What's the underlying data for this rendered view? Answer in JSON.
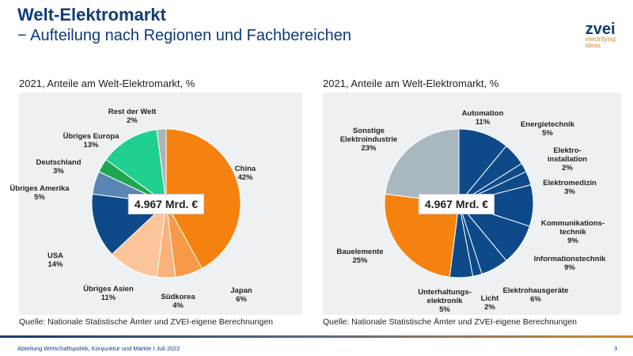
{
  "header": {
    "title": "Welt-Elektromarkt",
    "subtitle": "− Aufteilung nach Regionen und Fachbereichen"
  },
  "logo": {
    "name": "zvei",
    "tagline1": "electrifying",
    "tagline2": "ideas"
  },
  "footer": {
    "text": "Abteilung Wirtschaftspolitik, Konjunktur und Märkte I Juli 2022",
    "page": "3"
  },
  "chart_data": [
    {
      "type": "pie",
      "title": "2021, Anteile am Welt-Elektromarkt, %",
      "center_label": "4.967 Mrd. €",
      "source": "Quelle: Nationale Statistische Ämter und ZVEI-eigene Berechnungen",
      "slices": [
        {
          "label": "China",
          "value": 42,
          "color": "#f5820f"
        },
        {
          "label": "Japan",
          "value": 6,
          "color": "#f79a48"
        },
        {
          "label": "Südkorea",
          "value": 4,
          "color": "#f9b27a"
        },
        {
          "label": "Übriges Asien",
          "value": 11,
          "color": "#fbc49a"
        },
        {
          "label": "USA",
          "value": 14,
          "color": "#0e4a8a"
        },
        {
          "label": "Übriges Amerika",
          "value": 5,
          "color": "#5b86b3"
        },
        {
          "label": "Deutschland",
          "value": 3,
          "color": "#1fa650"
        },
        {
          "label": "Übriges Europa",
          "value": 13,
          "color": "#1fd08f"
        },
        {
          "label": "Rest der Welt",
          "value": 2,
          "color": "#a9b4bc"
        }
      ]
    },
    {
      "type": "pie",
      "title": "2021, Anteile am Welt-Elektromarkt, %",
      "center_label": "4.967 Mrd. €",
      "source": "Quelle: Nationale Statistische Ämter und ZVEI-eigene Berechnungen",
      "slices": [
        {
          "label": "Automation",
          "value": 11,
          "color": "#0e4a8a"
        },
        {
          "label": "Energietechnik",
          "value": 5,
          "color": "#0e4a8a"
        },
        {
          "label": "Elektro-\ninstallation",
          "value": 2,
          "color": "#0e4a8a"
        },
        {
          "label": "Elektromedizin",
          "value": 3,
          "color": "#0e4a8a"
        },
        {
          "label": "Kommunikations-\ntechnik",
          "value": 9,
          "color": "#0e4a8a"
        },
        {
          "label": "Informationstechnik",
          "value": 9,
          "color": "#0e4a8a"
        },
        {
          "label": "Elektrohausgeräte",
          "value": 6,
          "color": "#0e4a8a"
        },
        {
          "label": "Licht",
          "value": 2,
          "color": "#0e4a8a"
        },
        {
          "label": "Unterhaltungs-\nelektronik",
          "value": 5,
          "color": "#0e4a8a"
        },
        {
          "label": "Bauelemente",
          "value": 25,
          "color": "#f5820f"
        },
        {
          "label": "Sonstige\nElektroindustrie",
          "value": 23,
          "color": "#a9b8c0"
        }
      ]
    }
  ]
}
